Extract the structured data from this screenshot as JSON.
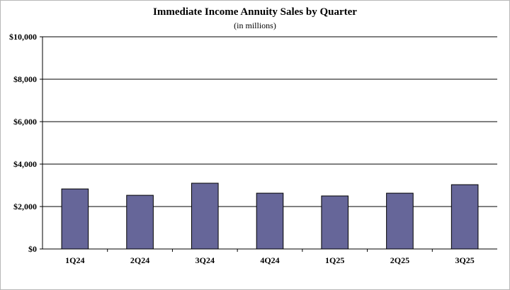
{
  "chart_data": {
    "type": "bar",
    "title": "Immediate Income Annuity Sales by Quarter",
    "subtitle": "(in millions)",
    "categories": [
      "1Q24",
      "2Q24",
      "3Q24",
      "4Q24",
      "1Q25",
      "2Q25",
      "3Q25"
    ],
    "values": [
      2830,
      2530,
      3100,
      2630,
      2500,
      2630,
      3030
    ],
    "ylim": [
      0,
      10000
    ],
    "yticks": [
      0,
      2000,
      4000,
      6000,
      8000,
      10000
    ],
    "ytick_labels": [
      "$0",
      "$2,000",
      "$4,000",
      "$6,000",
      "$8,000",
      "$10,000"
    ],
    "xlabel": "",
    "ylabel": "",
    "grid": true,
    "bar_color": "#666699",
    "bar_outline_color": "#000000"
  }
}
